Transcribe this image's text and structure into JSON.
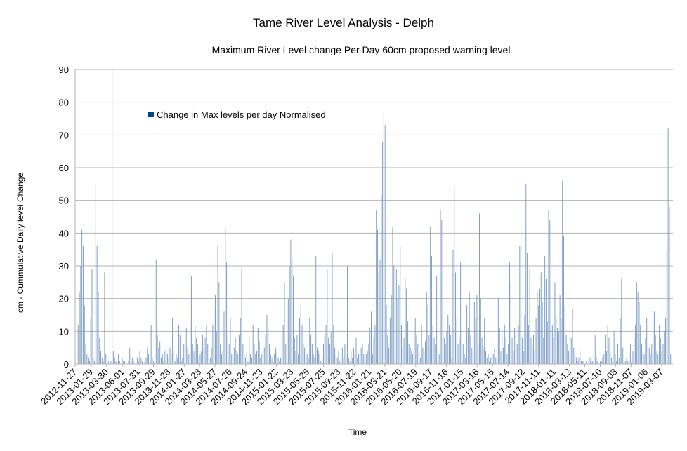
{
  "chart_data": {
    "type": "bar",
    "title": "Tame River Level Analysis - Delph",
    "subtitle": "Maximum River Level change Per Day 60cm proposed warning level",
    "xlabel": "Time",
    "ylabel": "cm - Cummulative Daily level Change",
    "ylim": [
      0,
      90
    ],
    "y_ticks": [
      0,
      10,
      20,
      30,
      40,
      50,
      60,
      70,
      80,
      90
    ],
    "grid": "horizontal",
    "legend_position": "top-left inside plot",
    "x_start": "2012-11-27",
    "x_ticks": [
      "2012-11-27",
      "2013-01-29",
      "2013-03-30",
      "2013-06-01",
      "2013-07-31",
      "2013-09-29",
      "2013-11-28",
      "2014-01-27",
      "2014-03-28",
      "2014-05-27",
      "2014-07-26",
      "2014-09-24",
      "2014-11-23",
      "2015-01-22",
      "2015-03-23",
      "2015-05-25",
      "2015-07-25",
      "2015-09-23",
      "2015-11-22",
      "2016-01-21",
      "2016-03-21",
      "2016-05-20",
      "2016-07-19",
      "2016-09-17",
      "2016-11-16",
      "2017-01-15",
      "2017-03-16",
      "2017-05-15",
      "2017-07-14",
      "2017-09-12",
      "2017-11-11",
      "2018-01-11",
      "2018-03-12",
      "2018-05-11",
      "2018-07-10",
      "2018-09-08",
      "2018-11-07",
      "2019-01-06",
      "2019-03-07"
    ],
    "series": [
      {
        "name": "Change in Max levels per day Normalised",
        "color": "#004586",
        "bar_color": "#7f9fc6",
        "values": [
          8,
          12,
          22,
          30,
          41,
          36,
          18,
          6,
          3,
          2,
          1,
          14,
          29,
          2,
          1,
          55,
          36,
          22,
          8,
          4,
          2,
          1,
          28,
          3,
          2,
          1,
          0,
          1,
          90,
          4,
          2,
          1,
          1,
          3,
          1,
          0,
          2,
          1,
          1,
          0,
          0,
          1,
          5,
          8,
          2,
          1,
          0,
          0,
          2,
          1,
          4,
          2,
          1,
          0,
          1,
          2,
          5,
          3,
          1,
          12,
          2,
          1,
          6,
          32,
          9,
          5,
          7,
          2,
          3,
          1,
          4,
          6,
          3,
          2,
          5,
          3,
          14,
          4,
          1,
          3,
          2,
          12,
          9,
          1,
          2,
          6,
          8,
          11,
          5,
          3,
          13,
          27,
          6,
          4,
          12,
          8,
          6,
          2,
          3,
          4,
          9,
          5,
          8,
          12,
          6,
          4,
          2,
          5,
          12,
          17,
          21,
          10,
          36,
          25,
          6,
          3,
          4,
          16,
          42,
          31,
          9,
          6,
          14,
          3,
          2,
          5,
          8,
          4,
          3,
          9,
          14,
          29,
          6,
          3,
          2,
          4,
          1,
          8,
          3,
          2,
          12,
          6,
          3,
          4,
          11,
          7,
          2,
          3,
          2,
          5,
          9,
          15,
          11,
          6,
          3,
          2,
          1,
          3,
          5,
          4,
          2,
          1,
          2,
          8,
          12,
          25,
          6,
          13,
          20,
          30,
          38,
          32,
          27,
          8,
          4,
          9,
          3,
          14,
          18,
          12,
          6,
          5,
          8,
          3,
          2,
          14,
          9,
          6,
          3,
          2,
          33,
          5,
          4,
          3,
          1,
          2,
          6,
          9,
          12,
          29,
          8,
          6,
          10,
          34,
          12,
          5,
          3,
          2,
          4,
          1,
          3,
          5,
          2,
          6,
          3,
          30,
          2,
          1,
          4,
          2,
          5,
          3,
          8,
          2,
          3,
          4,
          5,
          6,
          3,
          2,
          3,
          4,
          6,
          11,
          16,
          3,
          8,
          12,
          47,
          41,
          28,
          32,
          52,
          68,
          77,
          73,
          18,
          9,
          5,
          14,
          21,
          42,
          30,
          9,
          29,
          20,
          24,
          36,
          12,
          5,
          8,
          26,
          23,
          13,
          6,
          5,
          4,
          3,
          8,
          14,
          9,
          6,
          3,
          2,
          12,
          5,
          4,
          7,
          22,
          18,
          9,
          42,
          33,
          12,
          8,
          6,
          27,
          5,
          3,
          47,
          44,
          17,
          8,
          6,
          10,
          15,
          12,
          9,
          2,
          35,
          54,
          28,
          14,
          6,
          8,
          31,
          9,
          6,
          3,
          2,
          18,
          11,
          22,
          9,
          5,
          3,
          19,
          14,
          21,
          6,
          46,
          20,
          8,
          5,
          14,
          4,
          2,
          3,
          1,
          2,
          8,
          3,
          5,
          2,
          6,
          20,
          11,
          4,
          9,
          5,
          12,
          8,
          3,
          6,
          31,
          25,
          8,
          4,
          11,
          9,
          6,
          12,
          36,
          43,
          8,
          4,
          15,
          55,
          34,
          12,
          29,
          8,
          6,
          9,
          4,
          14,
          22,
          18,
          23,
          28,
          19,
          8,
          33,
          26,
          13,
          47,
          44,
          19,
          12,
          8,
          25,
          14,
          11,
          10,
          21,
          14,
          56,
          39,
          18,
          9,
          6,
          4,
          12,
          8,
          17,
          5,
          3,
          2,
          1,
          2,
          4,
          1,
          1,
          1,
          0,
          1,
          0,
          1,
          2,
          1,
          1,
          3,
          9,
          2,
          1,
          0,
          1,
          1,
          2,
          3,
          9,
          4,
          12,
          8,
          4,
          2,
          1,
          10,
          3,
          1,
          6,
          2,
          14,
          26,
          5,
          3,
          1,
          2,
          1,
          3,
          6,
          1,
          4,
          8,
          12,
          25,
          22,
          19,
          12,
          6,
          4,
          3,
          8,
          14,
          9,
          5,
          3,
          6,
          13,
          16,
          9,
          4,
          3,
          12,
          8,
          4,
          6,
          10,
          14,
          35,
          72,
          48,
          3
        ]
      }
    ]
  }
}
